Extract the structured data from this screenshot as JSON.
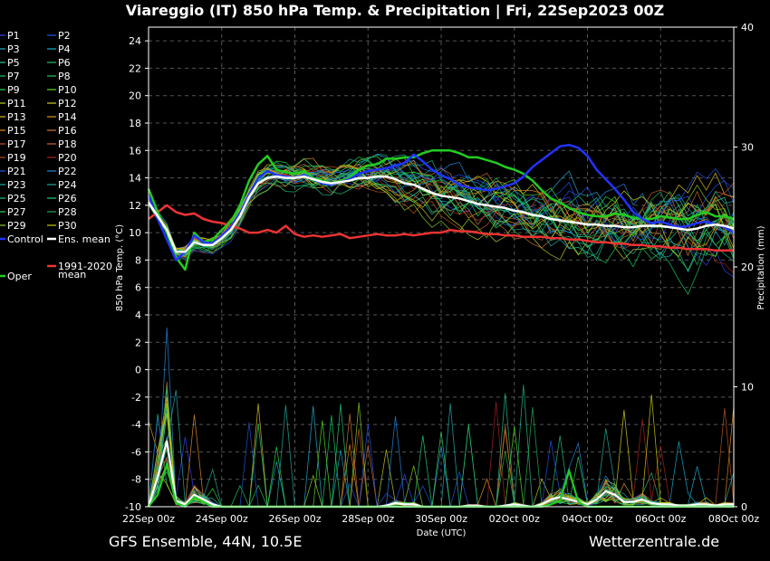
{
  "title": "Viareggio  (IT)  850 hPa Temp. & Precipitation | Fri, 22Sep2023 00Z",
  "footer_left": "GFS Ensemble, 44N, 10.5E",
  "footer_right": "Wetterzentrale.de",
  "chart_data": {
    "type": "line",
    "xlabel": "Date (UTC)",
    "ylabel": "850 hPa Temp. (°C)",
    "y2label": "Precipitation (mm)",
    "x_ticks": [
      "22Sep 00z",
      "24Sep 00z",
      "26Sep 00z",
      "28Sep 00z",
      "30Sep 00z",
      "02Oct 00z",
      "04Oct 00z",
      "06Oct 00z",
      "08Oct 00z"
    ],
    "xlim_hours": [
      0,
      384
    ],
    "ylim": [
      -10,
      25
    ],
    "y_ticks": [
      -10,
      -8,
      -6,
      -4,
      -2,
      0,
      2,
      4,
      6,
      8,
      10,
      12,
      14,
      16,
      18,
      20,
      22,
      24
    ],
    "y2lim": [
      0,
      40
    ],
    "y2_ticks": [
      0,
      10,
      20,
      30,
      40
    ],
    "grid": true,
    "legend_placement": "left-outside",
    "legend": {
      "col1": [
        "P1",
        "P3",
        "P5",
        "P7",
        "P9",
        "P11",
        "P13",
        "P15",
        "P17",
        "P19",
        "P21",
        "P23",
        "P25",
        "P27",
        "P29",
        "Control"
      ],
      "col2": [
        "P2",
        "P4",
        "P6",
        "P8",
        "P10",
        "P12",
        "P14",
        "P16",
        "P18",
        "P20",
        "P22",
        "P24",
        "P26",
        "P28",
        "P30",
        "Ens. mean"
      ],
      "extra": [
        {
          "label": "1991-2020",
          "label2": "mean",
          "color": "#ee3333"
        },
        {
          "label": "Oper",
          "color": "#22cc22"
        }
      ]
    },
    "member_colors": [
      "#3344ee",
      "#2255ee",
      "#22aacc",
      "#11aacc",
      "#22cc99",
      "#22bb77",
      "#11cc66",
      "#22cc55",
      "#22dd44",
      "#55dd22",
      "#bbcc22",
      "#cccc22",
      "#ddbb22",
      "#dd9922",
      "#dd8822",
      "#cc7733",
      "#bb5522",
      "#cc6633",
      "#bb4422",
      "#aa2222",
      "#2255dd",
      "#2288dd",
      "#22aaaa",
      "#22aa99",
      "#22bb88",
      "#22cc77",
      "#33cc55",
      "#22aa55",
      "#88cc22",
      "#cccc00"
    ],
    "series": [
      {
        "name": "Oper",
        "color": "#22cc22",
        "width": 2.5,
        "values": [
          13.2,
          11.5,
          10,
          8.2,
          7.3,
          10,
          9.3,
          9.5,
          10.2,
          10.8,
          12,
          13.8,
          15,
          15.6,
          14.6,
          14.4,
          14.3,
          14.5,
          14,
          13.8,
          13.6,
          13.8,
          14,
          14.6,
          14.9,
          15,
          15.4,
          15.4,
          15.5,
          15.5,
          15.8,
          16,
          16,
          16,
          15.8,
          15.5,
          15.5,
          15.3,
          15.1,
          14.8,
          14.6,
          14.3,
          13.8,
          13.1,
          12.5,
          12.2,
          11.8,
          11.5,
          11.3,
          11.2,
          11.2,
          11.4,
          11.3,
          11.1,
          11,
          11,
          11.2,
          11.1,
          11,
          11,
          11.3,
          11.5,
          11.2,
          11.2,
          11
        ]
      },
      {
        "name": "Control",
        "color": "#2233ff",
        "width": 2.5,
        "values": [
          12.7,
          11,
          9.5,
          8,
          8.6,
          9.8,
          9.3,
          9.2,
          9.8,
          10.4,
          11.4,
          12.8,
          14,
          14.5,
          14.2,
          14.1,
          14,
          14.2,
          13.9,
          13.6,
          13.5,
          13.7,
          13.9,
          14.3,
          14.5,
          14.6,
          14.7,
          14.9,
          15.1,
          15.7,
          15.2,
          14.6,
          14.2,
          13.9,
          13.5,
          13.3,
          13.2,
          13.1,
          13.2,
          13.4,
          13.6,
          14.1,
          14.8,
          15.3,
          15.8,
          16.3,
          16.4,
          16.2,
          15.6,
          14.6,
          13.9,
          13.2,
          12.4,
          11.5,
          11,
          10.7,
          10.8,
          10.6,
          10.4,
          10.5,
          10.7,
          10.8,
          10.6,
          10.4,
          10
        ]
      },
      {
        "name": "Ens. mean",
        "color": "#ffffff",
        "width": 2.5,
        "values": [
          12.2,
          11.2,
          10.2,
          8.6,
          8.6,
          9.3,
          9.1,
          9.1,
          9.6,
          10.2,
          11.2,
          12.6,
          13.6,
          14,
          14.1,
          14,
          14,
          14.1,
          13.9,
          13.7,
          13.6,
          13.7,
          13.8,
          14,
          14,
          14.1,
          14.1,
          13.9,
          13.6,
          13.5,
          13.2,
          12.9,
          12.7,
          12.6,
          12.5,
          12.3,
          12.1,
          12,
          11.9,
          11.8,
          11.6,
          11.5,
          11.3,
          11.2,
          11,
          10.9,
          10.8,
          10.7,
          10.6,
          10.6,
          10.5,
          10.5,
          10.4,
          10.4,
          10.5,
          10.5,
          10.5,
          10.4,
          10.3,
          10.2,
          10.3,
          10.5,
          10.6,
          10.5,
          10.3
        ]
      },
      {
        "name": "1991-2020 mean",
        "color": "#ee3333",
        "width": 2.5,
        "values": [
          11,
          11.5,
          12,
          11.5,
          11.3,
          11.4,
          11,
          10.8,
          10.7,
          10.5,
          10.3,
          10,
          10,
          10.2,
          10,
          10.5,
          9.9,
          9.7,
          9.8,
          9.7,
          9.8,
          9.9,
          9.6,
          9.7,
          9.8,
          9.9,
          9.8,
          9.8,
          9.9,
          9.8,
          9.9,
          10,
          10,
          10.2,
          10.1,
          10.1,
          10,
          9.9,
          9.9,
          9.8,
          9.8,
          9.7,
          9.7,
          9.7,
          9.6,
          9.6,
          9.5,
          9.5,
          9.4,
          9.3,
          9.3,
          9.2,
          9.2,
          9.1,
          9.1,
          9,
          9,
          8.9,
          8.9,
          8.8,
          8.8,
          8.8,
          8.7,
          8.7,
          8.7
        ]
      }
    ],
    "precipitation_mean_mm": [
      0,
      2.5,
      5.5,
      0.5,
      0.2,
      1,
      0.6,
      0.2,
      0,
      0,
      0,
      0,
      0,
      0,
      0,
      0,
      0,
      0,
      0,
      0,
      0,
      0,
      0,
      0,
      0,
      0,
      0.1,
      0.3,
      0.2,
      0.2,
      0,
      0,
      0,
      0,
      0,
      0.1,
      0.1,
      0,
      0,
      0.1,
      0.2,
      0.1,
      0,
      0.2,
      0.6,
      0.8,
      0.6,
      0.4,
      0.2,
      0.6,
      1.3,
      1,
      0.4,
      0.4,
      0.6,
      0.3,
      0.2,
      0.2,
      0.1,
      0.1,
      0.2,
      0.2,
      0.1,
      0.2,
      0.2
    ],
    "precipitation_oper_mm": [
      0,
      1,
      3.5,
      0.3,
      0,
      0.8,
      0.4,
      0,
      0,
      0,
      0,
      0,
      0,
      0,
      0,
      0,
      0,
      0,
      0,
      0,
      0,
      0,
      0,
      0,
      0,
      0,
      0,
      0,
      0,
      0,
      0,
      0,
      0,
      0,
      0,
      0,
      0,
      0,
      0,
      0,
      0,
      0,
      0,
      0,
      0.2,
      0.5,
      3,
      0.4,
      0,
      0,
      0,
      0,
      0,
      0,
      0,
      0,
      0,
      0,
      0,
      0,
      0,
      0,
      0,
      0,
      0
    ]
  }
}
